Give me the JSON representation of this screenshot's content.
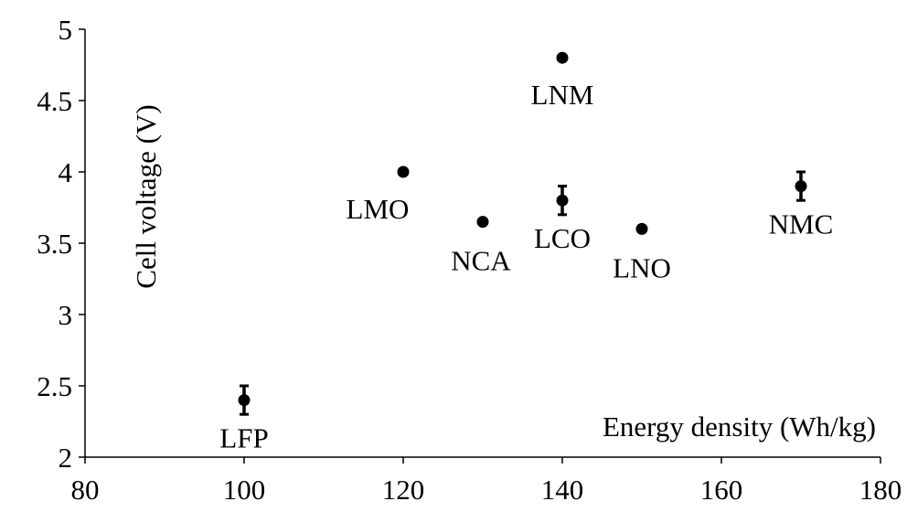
{
  "chart_data": {
    "type": "scatter",
    "title": "",
    "xlabel": "Energy density (Wh/kg)",
    "ylabel": "Cell voltage (V)",
    "xlim": [
      80,
      180
    ],
    "ylim": [
      2,
      5
    ],
    "x_ticks": [
      "80",
      "100",
      "120",
      "140",
      "160",
      "180"
    ],
    "y_ticks": [
      "2",
      "2.5",
      "3",
      "3.5",
      "4",
      "4.5",
      "5"
    ],
    "grid": false,
    "legend": "none",
    "marker_color": "#000000",
    "points": [
      {
        "label": "LFP",
        "x": 100,
        "y": 2.4,
        "err": 0.1
      },
      {
        "label": "LMO",
        "x": 120,
        "y": 4.0
      },
      {
        "label": "NCA",
        "x": 130,
        "y": 3.65
      },
      {
        "label": "LNM",
        "x": 140,
        "y": 4.8
      },
      {
        "label": "LCO",
        "x": 140,
        "y": 3.8,
        "err": 0.1
      },
      {
        "label": "LNO",
        "x": 150,
        "y": 3.6
      },
      {
        "label": "NMC",
        "x": 170,
        "y": 3.9,
        "err": 0.1
      }
    ]
  }
}
